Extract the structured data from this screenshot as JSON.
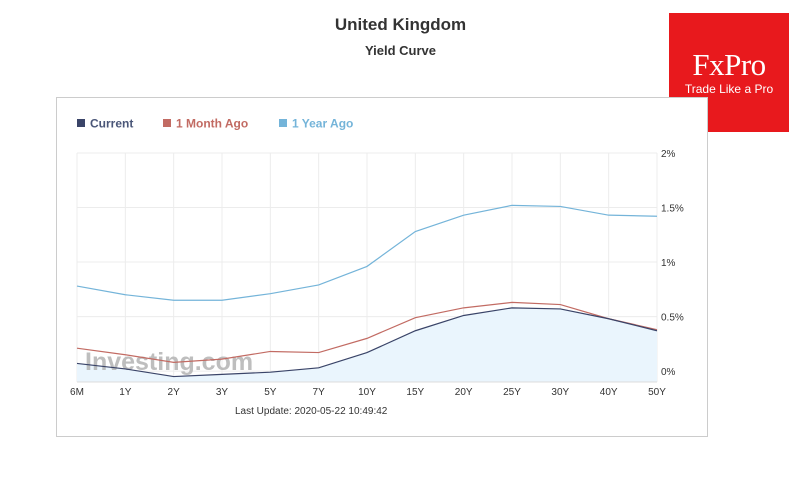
{
  "header": {
    "title": "United Kingdom",
    "subtitle": "Yield Curve"
  },
  "logo": {
    "name": "FxPro",
    "tagline": "Trade Like a Pro"
  },
  "footer": {
    "last_update": "Last Update: 2020-05-22 10:49:42"
  },
  "watermark": "Investing.com",
  "chart_data": {
    "type": "line",
    "title": "United Kingdom",
    "subtitle": "Yield Curve",
    "categories": [
      "6M",
      "1Y",
      "2Y",
      "3Y",
      "5Y",
      "7Y",
      "10Y",
      "15Y",
      "20Y",
      "25Y",
      "30Y",
      "40Y",
      "50Y"
    ],
    "y_axis": {
      "position": "right",
      "range": [
        -0.1,
        2.0
      ],
      "ticks": [
        0,
        0.5,
        1,
        1.5,
        2
      ],
      "tick_labels": [
        "0%",
        "0.5%",
        "1%",
        "1.5%",
        "2%"
      ]
    },
    "grid": true,
    "legend": "top-left",
    "series": [
      {
        "name": "Current",
        "color": "#3a4468",
        "area_fill": "#eaf5fd",
        "values": [
          0.07,
          0.02,
          -0.05,
          -0.03,
          -0.01,
          0.03,
          0.17,
          0.37,
          0.51,
          0.58,
          0.57,
          0.48,
          0.37
        ]
      },
      {
        "name": "1 Month Ago",
        "color": "#c26b63",
        "values": [
          0.21,
          0.15,
          0.08,
          0.11,
          0.18,
          0.17,
          0.3,
          0.49,
          0.58,
          0.63,
          0.61,
          0.48,
          0.38
        ]
      },
      {
        "name": "1 Year Ago",
        "color": "#74b4d9",
        "values": [
          0.78,
          0.7,
          0.65,
          0.65,
          0.71,
          0.79,
          0.96,
          1.28,
          1.43,
          1.52,
          1.51,
          1.43,
          1.42
        ]
      }
    ]
  }
}
